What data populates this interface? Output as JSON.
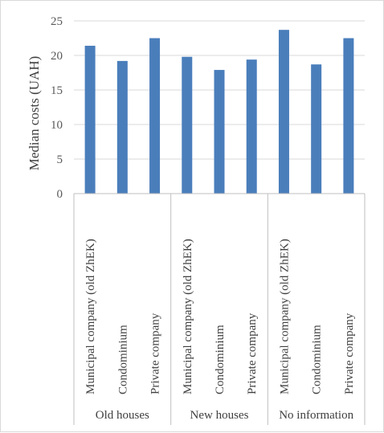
{
  "chart_data": {
    "type": "bar",
    "ylabel": "Median costs (UAH)",
    "xlabel": "",
    "title": "",
    "ylim": [
      0,
      25
    ],
    "yticks": [
      0,
      5,
      10,
      15,
      20,
      25
    ],
    "grid": true,
    "legend": "none",
    "bar_color": "#4a7ebb",
    "groups": [
      {
        "label": "Old houses",
        "categories": [
          "Municipal company (old ZhEK)",
          "Condominium",
          "Private company"
        ],
        "values": [
          21.4,
          19.2,
          22.5
        ]
      },
      {
        "label": "New houses",
        "categories": [
          "Municipal company (old ZhEK)",
          "Condominium",
          "Private company"
        ],
        "values": [
          19.8,
          17.9,
          19.4
        ]
      },
      {
        "label": "No information",
        "categories": [
          "Municipal company (old ZhEK)",
          "Condominium",
          "Private company"
        ],
        "values": [
          23.7,
          18.7,
          22.5
        ]
      }
    ]
  }
}
